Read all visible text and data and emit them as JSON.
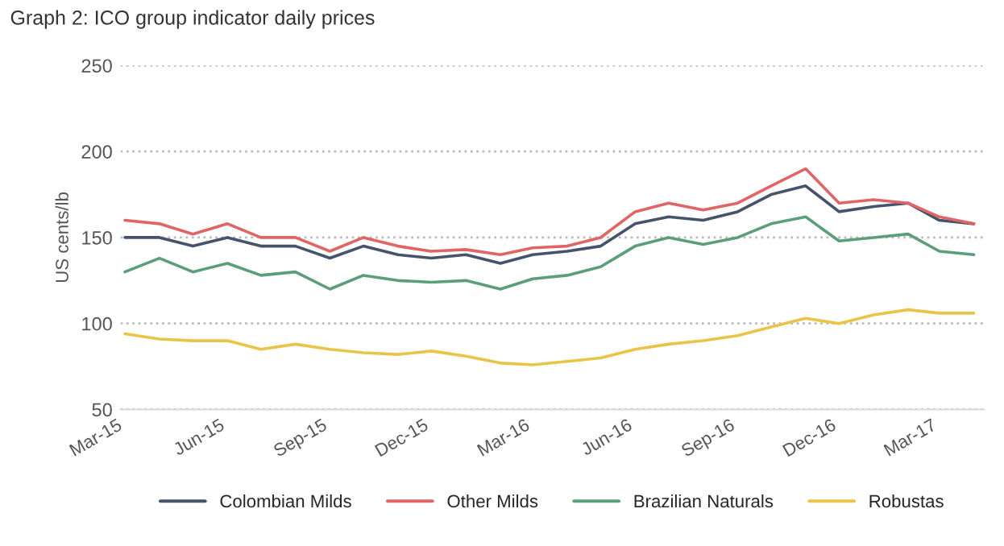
{
  "chart_data": {
    "type": "line",
    "title": "Graph 2: ICO group indicator daily prices",
    "ylabel": "US cents/lb",
    "x": [
      "2015-03-01",
      "2015-04-01",
      "2015-05-01",
      "2015-06-01",
      "2015-07-01",
      "2015-08-01",
      "2015-09-01",
      "2015-10-01",
      "2015-11-01",
      "2015-12-01",
      "2016-01-01",
      "2016-02-01",
      "2016-03-01",
      "2016-04-01",
      "2016-05-01",
      "2016-06-01",
      "2016-07-01",
      "2016-08-01",
      "2016-09-01",
      "2016-10-01",
      "2016-11-01",
      "2016-12-01",
      "2017-01-01",
      "2017-02-01",
      "2017-03-01",
      "2017-04-01"
    ],
    "series": [
      {
        "name": "Colombian Milds",
        "color": "#44546a",
        "values": [
          150,
          150,
          145,
          150,
          145,
          145,
          138,
          145,
          140,
          138,
          140,
          135,
          140,
          142,
          145,
          158,
          162,
          160,
          165,
          175,
          180,
          165,
          168,
          170,
          160,
          158
        ]
      },
      {
        "name": "Other Milds",
        "color": "#e06666",
        "values": [
          160,
          158,
          152,
          158,
          150,
          150,
          142,
          150,
          145,
          142,
          143,
          140,
          144,
          145,
          150,
          165,
          170,
          166,
          170,
          180,
          190,
          170,
          172,
          170,
          162,
          158
        ]
      },
      {
        "name": "Brazilian Naturals",
        "color": "#5b9e7a",
        "values": [
          130,
          138,
          130,
          135,
          128,
          130,
          120,
          128,
          125,
          124,
          125,
          120,
          126,
          128,
          133,
          145,
          150,
          146,
          150,
          158,
          162,
          148,
          150,
          152,
          142,
          140
        ]
      },
      {
        "name": "Robustas",
        "color": "#e8c547",
        "values": [
          94,
          91,
          90,
          90,
          85,
          88,
          85,
          83,
          82,
          84,
          81,
          77,
          76,
          78,
          80,
          85,
          88,
          90,
          93,
          98,
          103,
          100,
          105,
          108,
          106,
          106
        ]
      }
    ],
    "xlim": [
      "2015-02-25",
      "2017-04-10"
    ],
    "xticks": [
      {
        "value": "2015-03-01",
        "label": "Mar-15"
      },
      {
        "value": "2015-06-01",
        "label": "Jun-15"
      },
      {
        "value": "2015-09-01",
        "label": "Sep-15"
      },
      {
        "value": "2015-12-01",
        "label": "Dec-15"
      },
      {
        "value": "2016-03-01",
        "label": "Mar-16"
      },
      {
        "value": "2016-06-01",
        "label": "Jun-16"
      },
      {
        "value": "2016-09-01",
        "label": "Sep-16"
      },
      {
        "value": "2016-12-01",
        "label": "Dec-16"
      },
      {
        "value": "2017-03-01",
        "label": "Mar-17"
      }
    ],
    "ylim": [
      50,
      250
    ],
    "yticks": [
      50,
      100,
      150,
      200,
      250
    ],
    "grid": "y",
    "legend": "bottom",
    "marker": "none",
    "line_style": "solid"
  }
}
